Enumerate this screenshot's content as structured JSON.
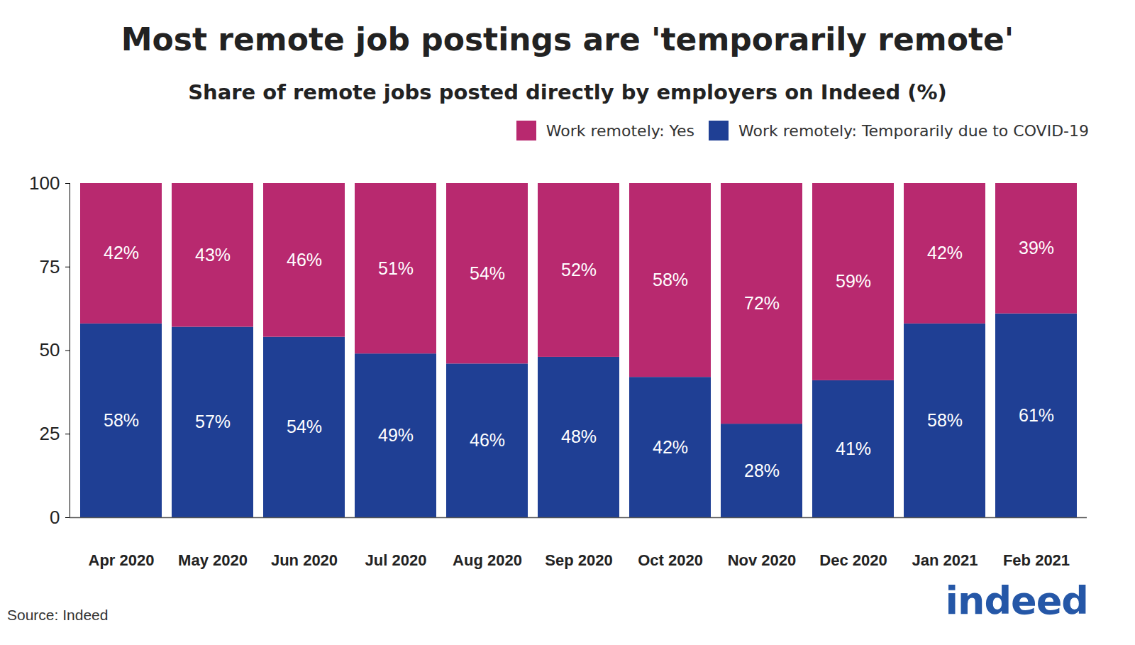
{
  "chart_data": {
    "type": "bar",
    "title": "Most remote job postings are 'temporarily remote'",
    "subtitle": "Share of remote jobs posted directly by employers on Indeed (%)",
    "source": "Source: Indeed",
    "logo": "indeed",
    "categories": [
      "Apr 2020",
      "May 2020",
      "Jun 2020",
      "Jul 2020",
      "Aug 2020",
      "Sep 2020",
      "Oct 2020",
      "Nov 2020",
      "Dec 2020",
      "Jan 2021",
      "Feb 2021"
    ],
    "series": [
      {
        "name": "Work remotely: Yes",
        "color": "#b8296f",
        "values": [
          42,
          43,
          46,
          51,
          54,
          52,
          58,
          72,
          59,
          42,
          39
        ],
        "value_labels": [
          "42%",
          "43%",
          "46%",
          "51%",
          "54%",
          "52%",
          "58%",
          "72%",
          "59%",
          "42%",
          "39%"
        ]
      },
      {
        "name": "Work remotely: Temporarily due to COVID-19",
        "color": "#1f3f94",
        "values": [
          58,
          57,
          54,
          49,
          46,
          48,
          42,
          28,
          41,
          58,
          61
        ],
        "value_labels": [
          "58%",
          "57%",
          "54%",
          "49%",
          "46%",
          "48%",
          "42%",
          "28%",
          "41%",
          "58%",
          "61%"
        ]
      }
    ],
    "ylim": [
      0,
      100
    ],
    "yticks": [
      0,
      25,
      50,
      75,
      100
    ],
    "stacked": true,
    "data_labels": true,
    "grid": false,
    "legend": "top-right"
  }
}
